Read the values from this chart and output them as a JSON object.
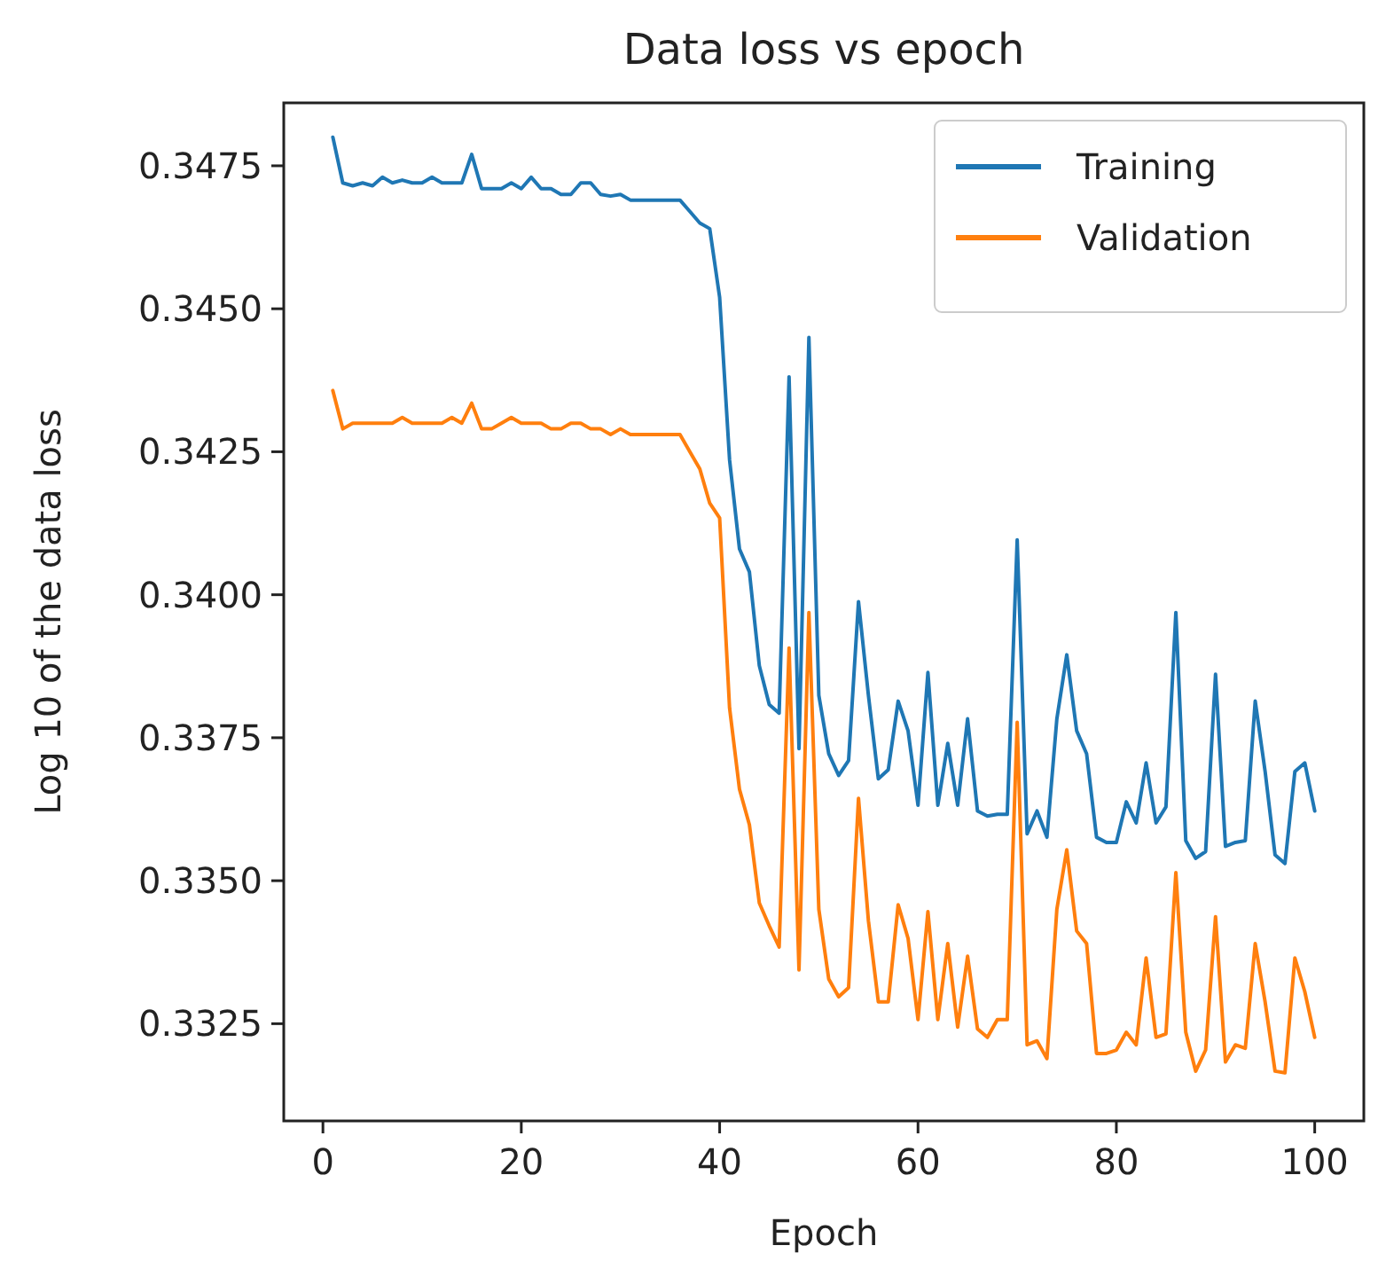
{
  "chart_data": {
    "type": "line",
    "title": "Data loss vs epoch",
    "xlabel": "Epoch",
    "ylabel": "Log 10 of the data loss",
    "x": [
      1,
      2,
      3,
      4,
      5,
      6,
      7,
      8,
      9,
      10,
      11,
      12,
      13,
      14,
      15,
      16,
      17,
      18,
      19,
      20,
      21,
      22,
      23,
      24,
      25,
      26,
      27,
      28,
      29,
      30,
      31,
      32,
      33,
      34,
      35,
      36,
      37,
      38,
      39,
      40,
      41,
      42,
      43,
      44,
      45,
      46,
      47,
      48,
      49,
      50,
      51,
      52,
      53,
      54,
      55,
      56,
      57,
      58,
      59,
      60,
      61,
      62,
      63,
      64,
      65,
      66,
      67,
      68,
      69,
      70,
      71,
      72,
      73,
      74,
      75,
      76,
      77,
      78,
      79,
      80,
      81,
      82,
      83,
      84,
      85,
      86,
      87,
      88,
      89,
      90,
      91,
      92,
      93,
      94,
      95,
      96,
      97,
      98,
      99,
      100
    ],
    "series": [
      {
        "name": "Training",
        "color": "#1f77b4",
        "values": [
          0.348,
          0.3472,
          0.34715,
          0.3472,
          0.34715,
          0.3473,
          0.3472,
          0.34725,
          0.3472,
          0.3472,
          0.3473,
          0.3472,
          0.3472,
          0.3472,
          0.3477,
          0.3471,
          0.3471,
          0.3471,
          0.3472,
          0.3471,
          0.3473,
          0.3471,
          0.3471,
          0.347,
          0.347,
          0.3472,
          0.3472,
          0.347,
          0.34697,
          0.347,
          0.3469,
          0.3469,
          0.3469,
          0.3469,
          0.3469,
          0.3469,
          0.3467,
          0.3465,
          0.3464,
          0.3452,
          0.34236,
          0.3408,
          0.3404,
          0.33876,
          0.33808,
          0.33793,
          0.34381,
          0.33731,
          0.3445,
          0.33824,
          0.33722,
          0.33684,
          0.3371,
          0.33988,
          0.33824,
          0.33678,
          0.33694,
          0.33814,
          0.33762,
          0.33632,
          0.33864,
          0.33632,
          0.3374,
          0.33632,
          0.33783,
          0.33622,
          0.33613,
          0.33616,
          0.33616,
          0.34096,
          0.33582,
          0.33622,
          0.33576,
          0.33783,
          0.33895,
          0.33762,
          0.33722,
          0.33576,
          0.33567,
          0.33567,
          0.33638,
          0.33601,
          0.33706,
          0.33601,
          0.33629,
          0.33969,
          0.3357,
          0.33539,
          0.33551,
          0.33861,
          0.3356,
          0.33567,
          0.3357,
          0.33814,
          0.33691,
          0.33545,
          0.3353,
          0.33691,
          0.33706,
          0.33622
        ]
      },
      {
        "name": "Validation",
        "color": "#ff7f0e",
        "values": [
          0.34357,
          0.3429,
          0.343,
          0.343,
          0.343,
          0.343,
          0.343,
          0.3431,
          0.343,
          0.343,
          0.343,
          0.343,
          0.3431,
          0.343,
          0.34335,
          0.3429,
          0.3429,
          0.343,
          0.3431,
          0.343,
          0.343,
          0.343,
          0.3429,
          0.3429,
          0.343,
          0.343,
          0.3429,
          0.3429,
          0.3428,
          0.3429,
          0.3428,
          0.3428,
          0.3428,
          0.3428,
          0.3428,
          0.3428,
          0.3425,
          0.3422,
          0.3416,
          0.34134,
          0.33802,
          0.3366,
          0.33598,
          0.33461,
          0.33421,
          0.33384,
          0.33907,
          0.33344,
          0.33969,
          0.3345,
          0.33328,
          0.33297,
          0.33313,
          0.33644,
          0.3343,
          0.33288,
          0.33288,
          0.33458,
          0.33399,
          0.33257,
          0.33446,
          0.33257,
          0.3339,
          0.33244,
          0.33368,
          0.33241,
          0.33226,
          0.33257,
          0.33257,
          0.33777,
          0.33213,
          0.3322,
          0.33189,
          0.3345,
          0.33554,
          0.33412,
          0.3339,
          0.33198,
          0.33198,
          0.33204,
          0.33235,
          0.33213,
          0.33365,
          0.33226,
          0.33232,
          0.33514,
          0.33235,
          0.33167,
          0.33204,
          0.33437,
          0.33183,
          0.33213,
          0.33207,
          0.3339,
          0.33288,
          0.33167,
          0.33164,
          0.33365,
          0.33306,
          0.33226
        ]
      }
    ],
    "xlim": [
      -3.95,
      104.95
    ],
    "xticks": [
      0,
      20,
      40,
      60,
      80,
      100
    ],
    "ylim": [
      0.3308,
      0.3486
    ],
    "yticks": [
      {
        "value": 0.3325,
        "label": "0.3325"
      },
      {
        "value": 0.335,
        "label": "0.3350"
      },
      {
        "value": 0.3375,
        "label": "0.3375"
      },
      {
        "value": 0.34,
        "label": "0.3400"
      },
      {
        "value": 0.3425,
        "label": "0.3425"
      },
      {
        "value": 0.345,
        "label": "0.3450"
      },
      {
        "value": 0.3475,
        "label": "0.3475"
      }
    ],
    "legend": "top right",
    "marker": "none",
    "line_style": "solid"
  }
}
